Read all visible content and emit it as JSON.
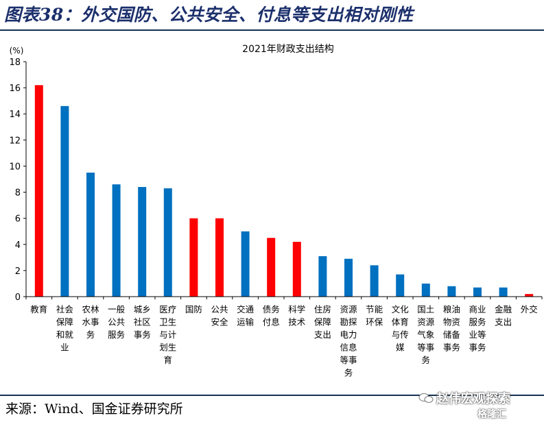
{
  "page": {
    "title": "图表38：外交国防、公共安全、付息等支出相对刚性",
    "source": "来源：Wind、国金证券研究所",
    "watermark": "赵伟宏观探索",
    "watermark_sub": "格隆汇"
  },
  "colors": {
    "blue": "#0070c0",
    "red": "#ff0000",
    "title": "#1b2f6b",
    "rule": "#16304f"
  },
  "chart_data": {
    "type": "bar",
    "title": "2021年财政支出结构",
    "ylabel": "(%)",
    "ylim": [
      0,
      18
    ],
    "yticks": [
      0,
      2,
      4,
      6,
      8,
      10,
      12,
      14,
      16,
      18
    ],
    "grid": false,
    "legend": "none",
    "categories": [
      "教育",
      "社会保障和就业",
      "农林水事务",
      "一般公共服务",
      "城乡社区事务",
      "医疗卫生与计划生育",
      "国防",
      "公共安全",
      "交通运输",
      "债务付息",
      "科学技术",
      "住房保障支出",
      "资源勘探电力信息等事务",
      "节能环保",
      "文化体育与传媒",
      "国土资源气象等事务",
      "粮油物资储备事务",
      "商业服务业等事务",
      "金融支出",
      "外交"
    ],
    "category_lines": [
      [
        "教育"
      ],
      [
        "社会",
        "保障",
        "和就",
        "业"
      ],
      [
        "农林",
        "水事",
        "务"
      ],
      [
        "一般",
        "公共",
        "服务"
      ],
      [
        "城乡",
        "社区",
        "事务"
      ],
      [
        "医疗",
        "卫生",
        "与计",
        "划生",
        "育"
      ],
      [
        "国防"
      ],
      [
        "公共",
        "安全"
      ],
      [
        "交通",
        "运输"
      ],
      [
        "债务",
        "付息"
      ],
      [
        "科学",
        "技术"
      ],
      [
        "住房",
        "保障",
        "支出"
      ],
      [
        "资源",
        "勘探",
        "电力",
        "信息",
        "等事",
        "务"
      ],
      [
        "节能",
        "环保"
      ],
      [
        "文化",
        "体育",
        "与传",
        "媒"
      ],
      [
        "国土",
        "资源",
        "气象",
        "等事",
        "务"
      ],
      [
        "粮油",
        "物资",
        "储备",
        "事务"
      ],
      [
        "商业",
        "服务",
        "业等",
        "事务"
      ],
      [
        "金融",
        "支出"
      ],
      [
        "外交"
      ]
    ],
    "values": [
      16.2,
      14.6,
      9.5,
      8.6,
      8.4,
      8.3,
      6.0,
      6.0,
      5.0,
      4.5,
      4.2,
      3.1,
      2.9,
      2.4,
      1.7,
      1.0,
      0.8,
      0.7,
      0.7,
      0.2
    ],
    "highlight": [
      true,
      false,
      false,
      false,
      false,
      false,
      true,
      true,
      false,
      true,
      true,
      false,
      false,
      false,
      false,
      false,
      false,
      false,
      false,
      true
    ]
  }
}
